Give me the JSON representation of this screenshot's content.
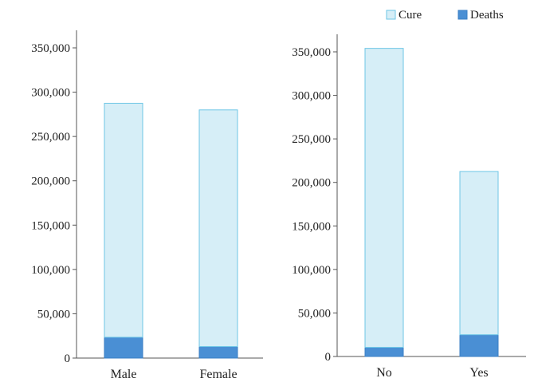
{
  "legend": [
    {
      "name": "Cure",
      "color": "#d6eef7",
      "edge": "#6ec6e6"
    },
    {
      "name": "Deaths",
      "color": "#4a8fd4",
      "edge": "#3b7fc4"
    }
  ],
  "chart_data": [
    {
      "type": "bar",
      "stacked": true,
      "categories": [
        "Male",
        "Female"
      ],
      "series": [
        {
          "name": "Deaths",
          "values": [
            23500,
            13000
          ]
        },
        {
          "name": "Cure",
          "values": [
            264000,
            267000
          ]
        }
      ],
      "totals": [
        287500,
        280000
      ],
      "ylim": [
        0,
        350000
      ],
      "yticks": [
        "0",
        "50,000",
        "100,000",
        "150,000",
        "200,000",
        "250,000",
        "300,000",
        "350,000"
      ],
      "ytick_values": [
        0,
        50000,
        100000,
        150000,
        200000,
        250000,
        300000,
        350000
      ],
      "grid": false,
      "legend": "top-right"
    },
    {
      "type": "bar",
      "stacked": true,
      "categories": [
        "No",
        "Yes"
      ],
      "series": [
        {
          "name": "Deaths",
          "values": [
            10500,
            25000
          ]
        },
        {
          "name": "Cure",
          "values": [
            343500,
            187500
          ]
        }
      ],
      "totals": [
        354000,
        212500
      ],
      "ylim": [
        0,
        350000
      ],
      "yticks": [
        "0",
        "50,000",
        "100,000",
        "150,000",
        "200,000",
        "250,000",
        "300,000",
        "350,000"
      ],
      "ytick_values": [
        0,
        50000,
        100000,
        150000,
        200000,
        250000,
        300000,
        350000
      ],
      "grid": false,
      "legend": "top-right"
    }
  ]
}
